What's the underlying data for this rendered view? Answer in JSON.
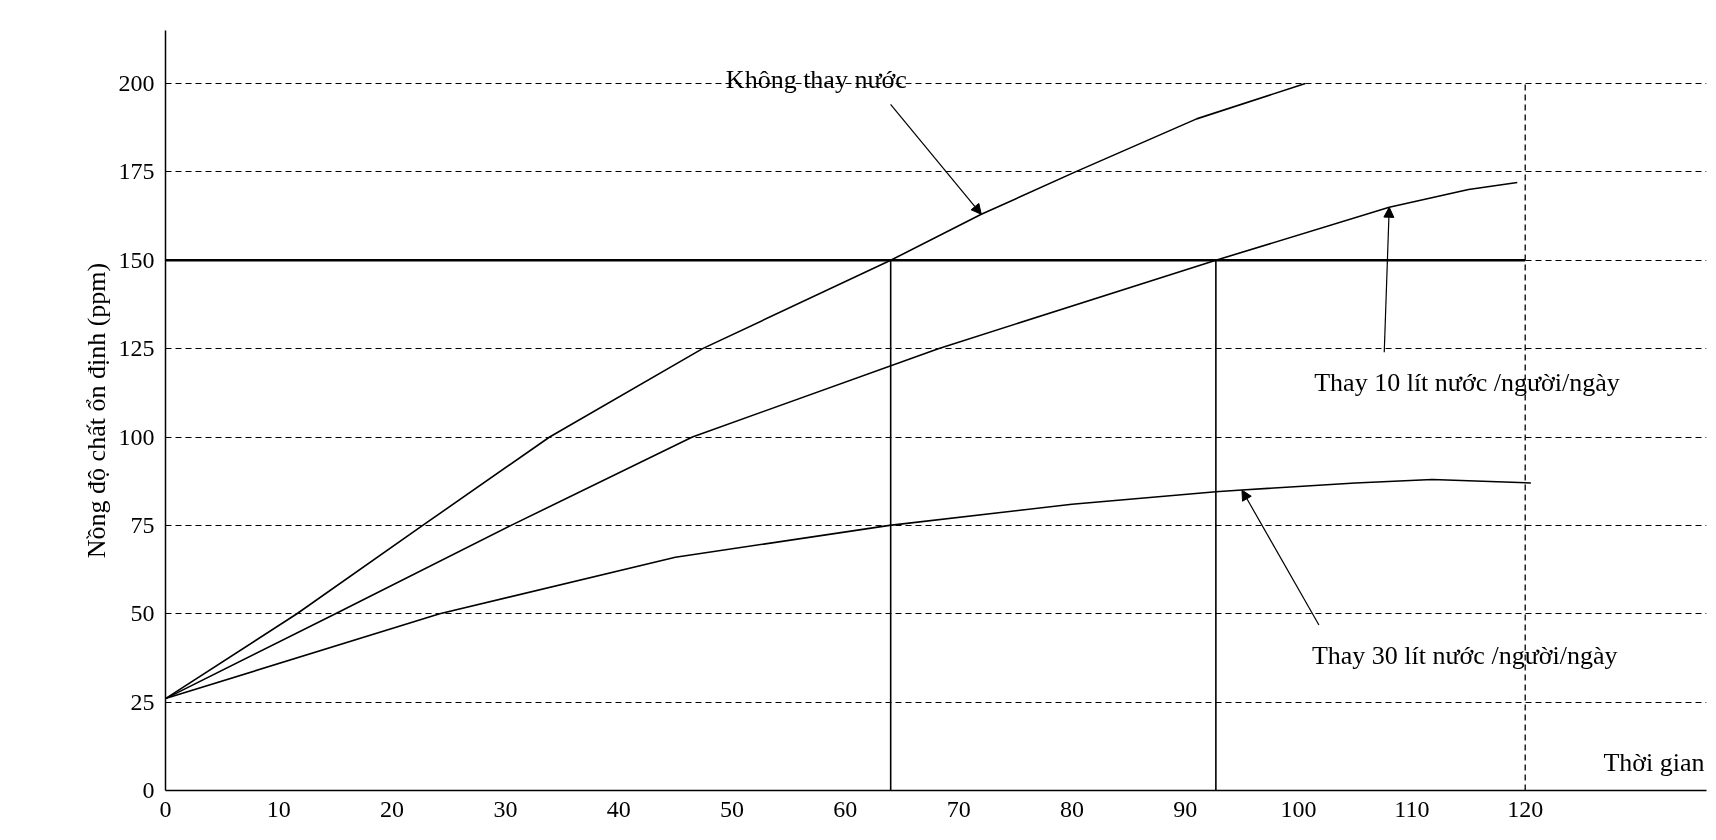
{
  "chart_data": {
    "type": "line",
    "xlabel": "Thời gian",
    "ylabel": "Nồng độ chất ổn định (ppm)",
    "xlim": [
      0,
      136
    ],
    "ylim": [
      0,
      215
    ],
    "xticks": [
      0,
      10,
      20,
      30,
      40,
      50,
      60,
      70,
      80,
      90,
      100,
      110,
      120
    ],
    "yticks": [
      0,
      25,
      50,
      75,
      100,
      125,
      150,
      175,
      200
    ],
    "grid": "y",
    "line_style": "solid",
    "marker": "none",
    "series": [
      {
        "color": "#000000",
        "x": [
          0,
          11.6,
          22.7,
          33.9,
          47.4,
          64,
          72,
          80.3,
          91,
          100.6
        ],
        "values": [
          26,
          50,
          75,
          100,
          125,
          150,
          163,
          175,
          190,
          200
        ]
      },
      {
        "color": "#000000",
        "x": [
          0,
          15,
          30.5,
          46.5,
          68.2,
          92.7,
          108,
          115,
          119.3
        ],
        "values": [
          26,
          50,
          75,
          100,
          125,
          150,
          165,
          170,
          172
        ]
      },
      {
        "color": "#000000",
        "x": [
          0,
          24.2,
          45,
          63.9,
          80,
          92.7,
          95,
          105,
          111.8,
          120.5
        ],
        "values": [
          26,
          50,
          66,
          75,
          81,
          84.5,
          85,
          87,
          88,
          87
        ]
      },
      {
        "color": "#000000",
        "x": [
          64,
          64
        ],
        "values": [
          0,
          150
        ]
      },
      {
        "color": "#000000",
        "x": [
          92.7,
          92.7
        ],
        "values": [
          0,
          150
        ]
      }
    ],
    "ref_lines": [
      {
        "axis": "y",
        "value": 150,
        "color": "#000000",
        "line_style": "solid"
      },
      {
        "axis": "x",
        "value": 120,
        "color": "#000000",
        "line_style": "dashed"
      }
    ],
    "annotations": [
      {
        "text": "Không thay nước",
        "x": 72,
        "y": 163
      },
      {
        "text": "Thay 10 lít nước /người/ngày",
        "x": 108,
        "y": 165
      },
      {
        "text": "Thay 30 lít nước /người/ngày",
        "x": 95,
        "y": 85
      }
    ]
  }
}
